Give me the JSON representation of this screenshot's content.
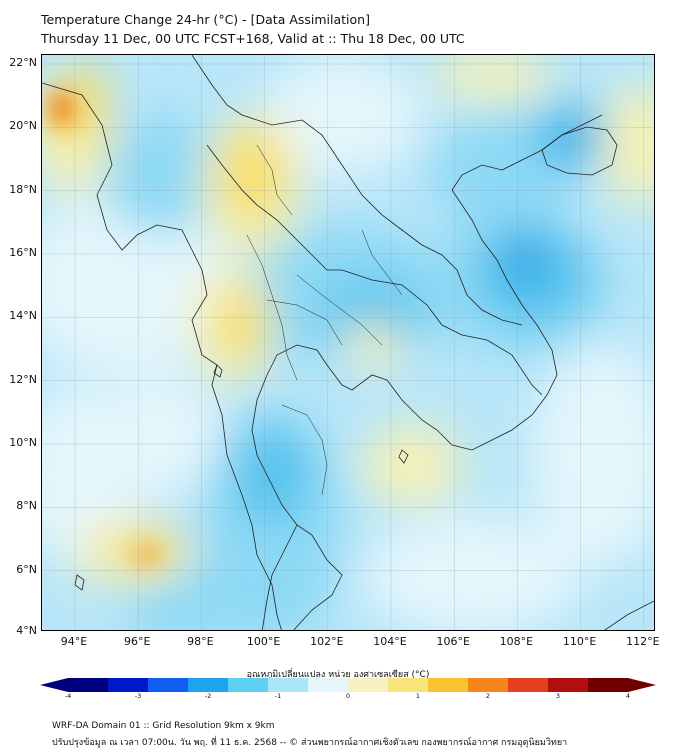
{
  "title": {
    "line1": "Temperature Change 24-hr (°C) - [Data Assimilation]",
    "line2": "Thursday 11 Dec, 00 UTC FCST+168, Valid at :: Thu 18 Dec, 00 UTC"
  },
  "map": {
    "lat_labels": [
      "22°N",
      "20°N",
      "18°N",
      "16°N",
      "14°N",
      "12°N",
      "10°N",
      "8°N",
      "6°N",
      "4°N"
    ],
    "lon_labels": [
      "94°E",
      "96°E",
      "98°E",
      "100°E",
      "102°E",
      "104°E",
      "106°E",
      "108°E",
      "110°E",
      "112°E"
    ],
    "field_palette": {
      "base": "#b8e6f8",
      "cool_strong": "#2aa7e6",
      "cool_medium": "#55c3ee",
      "cool_light": "#8dd9f5",
      "neutral": "#e4f6fb",
      "warm_light": "#f6f2b6",
      "warm_medium": "#f7dd5a",
      "warm_strong": "#f5a21c",
      "hot": "#e9572b"
    }
  },
  "colorbar": {
    "label": "อุณหภูมิเปลี่ยนแปลง หน่วย องศาเซลเซียส (°C)",
    "ticks": [
      "-4",
      "-3",
      "-2",
      "-1",
      "0",
      "1",
      "2",
      "3",
      "4"
    ],
    "range": [
      -4,
      4
    ],
    "colors": [
      "#00007e",
      "#0018c8",
      "#1060f0",
      "#1ea4ec",
      "#5ed0f2",
      "#a8e6f8",
      "#e6f6fa",
      "#f6f2c2",
      "#f7e57a",
      "#f7c32e",
      "#f5851c",
      "#e44020",
      "#b01010",
      "#700000"
    ]
  },
  "footer": {
    "line1": "WRF-DA Domain 01 :: Grid Resolution 9km x 9km",
    "line2": "ปรับปรุงข้อมูล ณ เวลา 07:00น. วัน พฤ. ที่ 11 ธ.ค. 2568 -- © ส่วนพยากรณ์อากาศเชิงตัวเลข กองพยากรณ์อากาศ กรมอุตุนิยมวิทยา"
  }
}
